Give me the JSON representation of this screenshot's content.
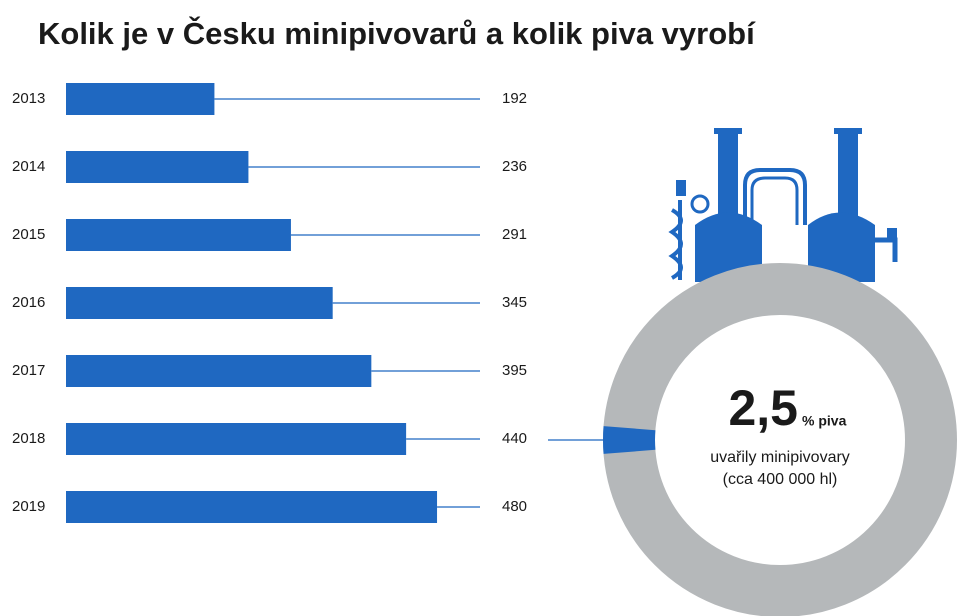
{
  "chart_data": [
    {
      "type": "bar",
      "title": "Kolik je v Česku minipivovarů a kolik piva vyrobí",
      "categories": [
        "2013",
        "2014",
        "2015",
        "2016",
        "2017",
        "2018",
        "2019"
      ],
      "values": [
        192,
        236,
        291,
        345,
        395,
        440,
        480
      ],
      "color": "#1f68c1"
    },
    {
      "type": "pie",
      "values": [
        2.5
      ],
      "value_labels": [
        "2,5"
      ],
      "unit": "% piva",
      "subtitle": "uvařily minipivovary",
      "note": "(cca 400 000 hl)",
      "colors": [
        "#1f68c1"
      ],
      "background_color": "#b5b8ba"
    }
  ]
}
